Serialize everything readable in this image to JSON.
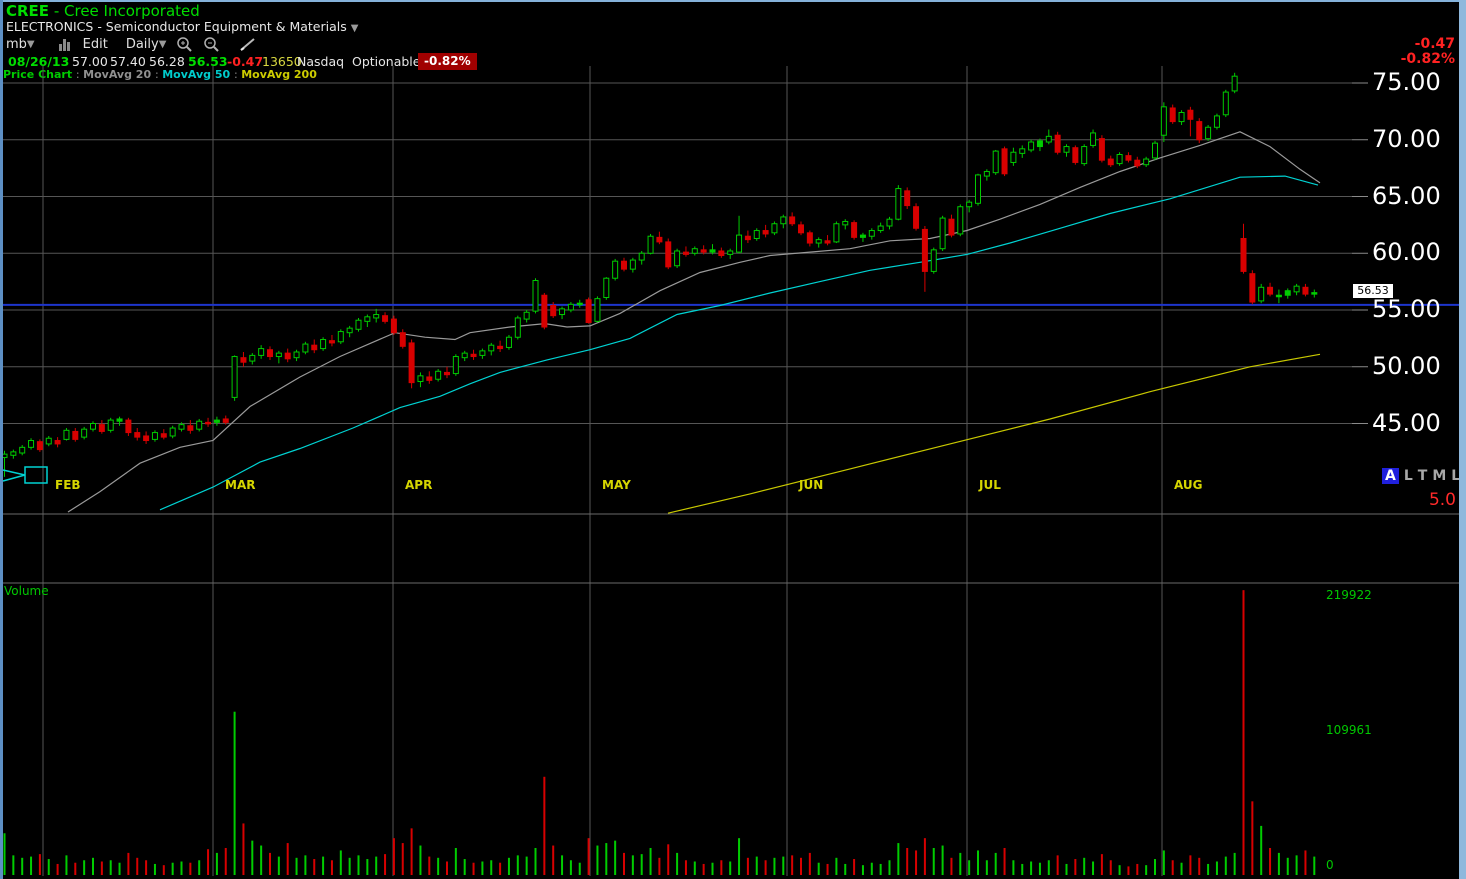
{
  "header": {
    "symbol": "CREE",
    "separator": " - ",
    "company": "Cree Incorporated",
    "sector": "ELECTRONICS - Semiconductor Equipment & Materials",
    "toolbar": {
      "layout_menu": "mb",
      "edit": "Edit",
      "period": "Daily"
    },
    "quote": {
      "date": "08/26/13",
      "open": "57.00",
      "high": "57.40",
      "low": "56.28",
      "last": "56.53",
      "change": "-0.47",
      "volume": "13650",
      "exchange": "Nasdaq",
      "optionable": "Optionable",
      "change_pct": "-0.82%"
    },
    "legend": {
      "title": "Price Chart",
      "sep": ":",
      "ma20": "MovAvg 20",
      "ma50": "MovAvg 50",
      "ma200": "MovAvg 200"
    },
    "top_right": {
      "change": "-0.47",
      "change_pct": "-0.82%"
    }
  },
  "price_axis": {
    "last_price_label": "56.53"
  },
  "zoom_presets": {
    "letters": [
      "A",
      "L",
      "T",
      "M",
      "L"
    ],
    "active_index": 0
  },
  "range_label": "5.0",
  "volume_pane": {
    "label": "Volume"
  },
  "colors": {
    "up": "#00cc00",
    "down": "#d80000",
    "grid": "#565656",
    "pane_border": "#6a6a6a",
    "ma20": "#9a9a9a",
    "ma50": "#00d2d2",
    "ma200": "#c8c800",
    "price_line": "#1d35cd",
    "annotation": "#00d2d2"
  },
  "chart_data": {
    "type": "candlestick",
    "title": "CREE Daily",
    "price_axis_values": [
      75,
      70,
      65,
      60,
      55,
      50,
      45
    ],
    "volume_axis_values": [
      219922,
      109961,
      0
    ],
    "months": [
      "FEB",
      "MAR",
      "APR",
      "MAY",
      "JUN",
      "JUL",
      "AUG"
    ],
    "month_grid_x": [
      43,
      213,
      393,
      590,
      787,
      967,
      1162
    ],
    "last_price": 56.53,
    "price_line_value": 55.45,
    "solid_green_indices": [
      97,
      117,
      145
    ],
    "candles": [
      [
        42.0,
        42.6,
        40.3,
        42.3,
        34000
      ],
      [
        42.2,
        42.7,
        41.9,
        42.5,
        16000
      ],
      [
        42.4,
        43.1,
        42.2,
        42.9,
        14000
      ],
      [
        42.9,
        43.7,
        42.7,
        43.5,
        15000
      ],
      [
        43.4,
        43.6,
        42.5,
        42.7,
        17000
      ],
      [
        43.2,
        43.9,
        43.0,
        43.7,
        13000
      ],
      [
        43.5,
        43.8,
        42.9,
        43.2,
        9000
      ],
      [
        43.6,
        44.6,
        43.5,
        44.4,
        16000
      ],
      [
        44.3,
        44.6,
        43.4,
        43.6,
        10000
      ],
      [
        43.8,
        44.7,
        43.6,
        44.5,
        12000
      ],
      [
        44.5,
        45.2,
        44.3,
        45.0,
        14000
      ],
      [
        44.9,
        45.3,
        44.1,
        44.3,
        11000
      ],
      [
        44.4,
        45.5,
        44.2,
        45.3,
        12000
      ],
      [
        45.2,
        45.6,
        44.8,
        45.4,
        10000
      ],
      [
        45.3,
        45.5,
        43.9,
        44.2,
        18000
      ],
      [
        44.2,
        44.6,
        43.5,
        43.8,
        14000
      ],
      [
        43.9,
        44.3,
        43.2,
        43.5,
        12000
      ],
      [
        43.6,
        44.4,
        43.4,
        44.2,
        9000
      ],
      [
        44.1,
        44.5,
        43.6,
        43.8,
        8000
      ],
      [
        43.9,
        44.8,
        43.7,
        44.6,
        10000
      ],
      [
        44.5,
        45.1,
        44.3,
        44.9,
        11000
      ],
      [
        44.8,
        45.3,
        44.1,
        44.4,
        10000
      ],
      [
        44.5,
        45.4,
        44.3,
        45.2,
        12000
      ],
      [
        45.1,
        45.5,
        44.7,
        45.0,
        21000
      ],
      [
        45.1,
        45.6,
        44.8,
        45.3,
        18000
      ],
      [
        45.4,
        45.7,
        44.9,
        45.1,
        22000
      ],
      [
        47.3,
        51.0,
        47.0,
        50.9,
        133000
      ],
      [
        50.8,
        51.3,
        50.0,
        50.4,
        42000
      ],
      [
        50.5,
        51.2,
        50.2,
        51.0,
        28000
      ],
      [
        51.0,
        51.9,
        50.7,
        51.6,
        24000
      ],
      [
        51.5,
        51.8,
        50.6,
        50.9,
        18000
      ],
      [
        50.9,
        51.4,
        50.3,
        51.2,
        15000
      ],
      [
        51.2,
        51.6,
        50.4,
        50.7,
        26000
      ],
      [
        50.8,
        51.5,
        50.5,
        51.3,
        14000
      ],
      [
        51.3,
        52.2,
        51.1,
        52.0,
        16000
      ],
      [
        51.9,
        52.4,
        51.2,
        51.5,
        13000
      ],
      [
        51.6,
        52.6,
        51.4,
        52.4,
        15000
      ],
      [
        52.3,
        52.8,
        51.8,
        52.1,
        12000
      ],
      [
        52.2,
        53.3,
        52.0,
        53.1,
        20000
      ],
      [
        53.0,
        53.6,
        52.6,
        53.4,
        14000
      ],
      [
        53.3,
        54.3,
        53.1,
        54.1,
        16000
      ],
      [
        54.0,
        54.6,
        53.5,
        54.4,
        13000
      ],
      [
        54.3,
        55.1,
        53.9,
        54.6,
        15000
      ],
      [
        54.5,
        54.8,
        53.8,
        54.0,
        17000
      ],
      [
        54.2,
        54.5,
        52.8,
        53.0,
        30000
      ],
      [
        53.0,
        53.3,
        51.6,
        51.8,
        26000
      ],
      [
        52.1,
        52.4,
        48.1,
        48.6,
        38000
      ],
      [
        48.7,
        49.5,
        48.2,
        49.2,
        24000
      ],
      [
        49.1,
        49.6,
        48.5,
        48.8,
        15000
      ],
      [
        48.9,
        49.8,
        48.7,
        49.6,
        14000
      ],
      [
        49.5,
        50.0,
        49.0,
        49.3,
        11000
      ],
      [
        49.4,
        51.1,
        49.2,
        50.9,
        22000
      ],
      [
        50.8,
        51.4,
        50.5,
        51.2,
        13000
      ],
      [
        51.1,
        51.5,
        50.6,
        50.9,
        10000
      ],
      [
        51.0,
        51.6,
        50.7,
        51.4,
        11000
      ],
      [
        51.4,
        52.1,
        51.0,
        51.9,
        12000
      ],
      [
        51.8,
        52.3,
        51.3,
        51.6,
        10000
      ],
      [
        51.7,
        52.8,
        51.5,
        52.6,
        14000
      ],
      [
        52.6,
        54.5,
        52.4,
        54.3,
        16000
      ],
      [
        54.2,
        55.0,
        53.9,
        54.8,
        15000
      ],
      [
        54.9,
        57.8,
        54.7,
        57.6,
        22000
      ],
      [
        56.3,
        56.5,
        53.3,
        53.5,
        80000
      ],
      [
        55.4,
        55.7,
        54.3,
        54.5,
        24000
      ],
      [
        54.6,
        55.3,
        54.2,
        55.1,
        16000
      ],
      [
        55.0,
        55.7,
        54.8,
        55.5,
        12000
      ],
      [
        55.5,
        55.9,
        55.2,
        55.6,
        10000
      ],
      [
        55.9,
        56.1,
        53.8,
        53.9,
        30000
      ],
      [
        54.0,
        56.2,
        53.9,
        56.0,
        24000
      ],
      [
        56.1,
        57.9,
        55.9,
        57.8,
        26000
      ],
      [
        57.8,
        59.5,
        57.6,
        59.3,
        28000
      ],
      [
        59.3,
        59.6,
        58.4,
        58.6,
        18000
      ],
      [
        58.6,
        59.6,
        58.3,
        59.4,
        16000
      ],
      [
        59.4,
        60.2,
        59.0,
        60.0,
        17000
      ],
      [
        60.0,
        61.7,
        59.9,
        61.5,
        22000
      ],
      [
        61.4,
        61.9,
        60.8,
        61.0,
        14000
      ],
      [
        61.0,
        61.3,
        58.6,
        58.8,
        25000
      ],
      [
        58.9,
        60.4,
        58.7,
        60.2,
        18000
      ],
      [
        60.1,
        60.6,
        59.7,
        59.9,
        12000
      ],
      [
        60.0,
        60.6,
        59.8,
        60.4,
        11000
      ],
      [
        60.3,
        60.7,
        59.9,
        60.1,
        9000
      ],
      [
        60.1,
        60.8,
        59.9,
        60.3,
        10000
      ],
      [
        60.2,
        60.5,
        59.6,
        59.8,
        12000
      ],
      [
        59.9,
        60.4,
        59.5,
        60.2,
        11000
      ],
      [
        60.1,
        63.3,
        60.0,
        61.6,
        30000
      ],
      [
        61.5,
        62.0,
        60.9,
        61.2,
        14000
      ],
      [
        61.3,
        62.2,
        61.1,
        62.0,
        15000
      ],
      [
        62.0,
        62.5,
        61.4,
        61.7,
        12000
      ],
      [
        61.8,
        62.8,
        61.6,
        62.6,
        14000
      ],
      [
        62.6,
        63.4,
        62.2,
        63.2,
        15000
      ],
      [
        63.2,
        63.6,
        62.4,
        62.6,
        16000
      ],
      [
        62.5,
        62.8,
        61.6,
        61.8,
        14000
      ],
      [
        61.8,
        62.0,
        60.6,
        60.9,
        18000
      ],
      [
        60.9,
        61.4,
        60.5,
        61.2,
        10000
      ],
      [
        61.1,
        61.6,
        60.7,
        60.9,
        9000
      ],
      [
        61.0,
        62.8,
        60.9,
        62.6,
        14000
      ],
      [
        62.5,
        63.0,
        62.1,
        62.8,
        9000
      ],
      [
        62.7,
        62.9,
        61.2,
        61.4,
        13000
      ],
      [
        61.4,
        61.8,
        61.0,
        61.6,
        8000
      ],
      [
        61.5,
        62.2,
        61.2,
        62.0,
        10000
      ],
      [
        62.0,
        62.7,
        61.8,
        62.4,
        9000
      ],
      [
        62.4,
        63.2,
        62.1,
        63.0,
        12000
      ],
      [
        63.0,
        66.0,
        62.9,
        65.7,
        26000
      ],
      [
        65.5,
        65.8,
        63.9,
        64.2,
        22000
      ],
      [
        64.1,
        64.4,
        62.0,
        62.2,
        20000
      ],
      [
        62.1,
        62.4,
        56.6,
        58.4,
        30000
      ],
      [
        58.4,
        60.5,
        58.2,
        60.3,
        22000
      ],
      [
        60.4,
        63.3,
        60.2,
        63.1,
        24000
      ],
      [
        63.0,
        63.4,
        61.4,
        61.6,
        14000
      ],
      [
        61.7,
        64.3,
        61.5,
        64.1,
        18000
      ],
      [
        64.1,
        64.7,
        63.6,
        64.5,
        12000
      ],
      [
        64.4,
        67.0,
        64.2,
        66.9,
        20000
      ],
      [
        66.8,
        67.4,
        66.4,
        67.2,
        12000
      ],
      [
        67.1,
        69.1,
        66.9,
        69.0,
        18000
      ],
      [
        69.2,
        69.4,
        66.8,
        67.0,
        22000
      ],
      [
        68.0,
        69.3,
        67.7,
        68.9,
        12000
      ],
      [
        68.8,
        69.5,
        68.4,
        69.2,
        9000
      ],
      [
        69.1,
        70.0,
        68.9,
        69.8,
        11000
      ],
      [
        69.4,
        70.1,
        69.0,
        69.9,
        10000
      ],
      [
        69.8,
        70.9,
        69.6,
        70.3,
        12000
      ],
      [
        70.4,
        70.7,
        68.7,
        68.9,
        16000
      ],
      [
        68.9,
        69.6,
        68.5,
        69.4,
        9000
      ],
      [
        69.3,
        69.5,
        67.8,
        68.0,
        13000
      ],
      [
        67.9,
        69.6,
        67.7,
        69.4,
        14000
      ],
      [
        69.5,
        70.9,
        69.3,
        70.6,
        11000
      ],
      [
        70.1,
        70.4,
        68.0,
        68.2,
        17000
      ],
      [
        68.3,
        68.6,
        67.6,
        67.8,
        12000
      ],
      [
        67.9,
        68.9,
        67.7,
        68.7,
        8000
      ],
      [
        68.6,
        68.9,
        68.0,
        68.2,
        7000
      ],
      [
        68.2,
        68.5,
        67.5,
        67.7,
        9000
      ],
      [
        67.8,
        68.5,
        67.6,
        68.3,
        8000
      ],
      [
        68.4,
        69.9,
        68.2,
        69.7,
        13000
      ],
      [
        70.4,
        73.3,
        69.8,
        72.9,
        20000
      ],
      [
        72.8,
        73.1,
        71.4,
        71.6,
        12000
      ],
      [
        71.6,
        72.6,
        71.3,
        72.4,
        10000
      ],
      [
        72.6,
        72.9,
        70.3,
        71.8,
        16000
      ],
      [
        71.6,
        71.9,
        69.7,
        70.0,
        14000
      ],
      [
        70.1,
        71.3,
        69.9,
        71.1,
        9000
      ],
      [
        71.1,
        72.3,
        70.9,
        72.1,
        11000
      ],
      [
        72.2,
        74.4,
        72.0,
        74.2,
        15000
      ],
      [
        74.3,
        75.9,
        74.1,
        75.6,
        18000
      ],
      [
        61.3,
        62.6,
        58.2,
        58.4,
        232000
      ],
      [
        58.2,
        58.5,
        55.5,
        55.7,
        60000
      ],
      [
        55.8,
        57.3,
        55.6,
        57.0,
        40000
      ],
      [
        57.0,
        57.4,
        56.2,
        56.4,
        22000
      ],
      [
        56.3,
        56.8,
        55.6,
        56.3,
        18000
      ],
      [
        56.3,
        56.9,
        56.0,
        56.7,
        14000
      ],
      [
        56.6,
        57.3,
        56.3,
        57.1,
        16000
      ],
      [
        57.0,
        57.3,
        56.2,
        56.4,
        20000
      ],
      [
        56.5,
        56.8,
        56.1,
        56.53,
        15000
      ]
    ],
    "ma20": [
      [
        68,
        37.2
      ],
      [
        100,
        39.0
      ],
      [
        140,
        41.5
      ],
      [
        180,
        42.9
      ],
      [
        213,
        43.5
      ],
      [
        250,
        46.5
      ],
      [
        300,
        49.1
      ],
      [
        340,
        50.9
      ],
      [
        395,
        53.0
      ],
      [
        425,
        52.6
      ],
      [
        455,
        52.4
      ],
      [
        470,
        53.0
      ],
      [
        510,
        53.5
      ],
      [
        545,
        53.8
      ],
      [
        567,
        53.5
      ],
      [
        590,
        53.6
      ],
      [
        620,
        54.7
      ],
      [
        660,
        56.7
      ],
      [
        700,
        58.3
      ],
      [
        740,
        59.2
      ],
      [
        770,
        59.8
      ],
      [
        810,
        60.1
      ],
      [
        850,
        60.4
      ],
      [
        890,
        61.1
      ],
      [
        930,
        61.3
      ],
      [
        967,
        62.0
      ],
      [
        1000,
        63.0
      ],
      [
        1040,
        64.3
      ],
      [
        1080,
        65.8
      ],
      [
        1120,
        67.2
      ],
      [
        1160,
        68.4
      ],
      [
        1200,
        69.5
      ],
      [
        1240,
        70.7
      ],
      [
        1270,
        69.4
      ],
      [
        1300,
        67.4
      ],
      [
        1320,
        66.2
      ]
    ],
    "ma50": [
      [
        160,
        37.4
      ],
      [
        213,
        39.4
      ],
      [
        260,
        41.6
      ],
      [
        300,
        42.8
      ],
      [
        353,
        44.6
      ],
      [
        400,
        46.4
      ],
      [
        440,
        47.4
      ],
      [
        470,
        48.5
      ],
      [
        500,
        49.5
      ],
      [
        547,
        50.6
      ],
      [
        590,
        51.5
      ],
      [
        630,
        52.5
      ],
      [
        677,
        54.6
      ],
      [
        720,
        55.4
      ],
      [
        770,
        56.5
      ],
      [
        820,
        57.5
      ],
      [
        870,
        58.5
      ],
      [
        920,
        59.2
      ],
      [
        967,
        59.9
      ],
      [
        1010,
        60.9
      ],
      [
        1060,
        62.2
      ],
      [
        1110,
        63.5
      ],
      [
        1170,
        64.8
      ],
      [
        1240,
        66.7
      ],
      [
        1285,
        66.8
      ],
      [
        1318,
        66.0
      ]
    ],
    "ma200": [
      [
        668,
        37.1
      ],
      [
        750,
        38.8
      ],
      [
        850,
        41.0
      ],
      [
        950,
        43.2
      ],
      [
        1050,
        45.4
      ],
      [
        1150,
        47.8
      ],
      [
        1250,
        50.0
      ],
      [
        1320,
        51.1
      ]
    ]
  }
}
